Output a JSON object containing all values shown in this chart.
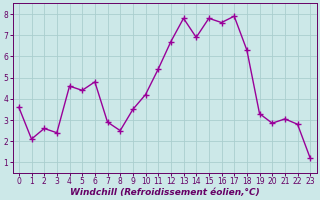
{
  "x": [
    0,
    1,
    2,
    3,
    4,
    5,
    6,
    7,
    8,
    9,
    10,
    11,
    12,
    13,
    14,
    15,
    16,
    17,
    18,
    19,
    20,
    21,
    22,
    23
  ],
  "y": [
    3.6,
    2.1,
    2.6,
    2.4,
    4.6,
    4.4,
    4.8,
    2.9,
    2.5,
    3.5,
    4.2,
    5.4,
    6.7,
    7.8,
    6.9,
    7.8,
    7.6,
    7.9,
    6.3,
    3.3,
    2.85,
    3.05,
    2.8,
    1.2
  ],
  "line_color": "#990099",
  "marker": "+",
  "marker_size": 4,
  "marker_lw": 1.0,
  "bg_color": "#cce8e8",
  "grid_color": "#aacece",
  "xlabel": "Windchill (Refroidissement éolien,°C)",
  "xlim": [
    -0.5,
    23.5
  ],
  "ylim": [
    0.5,
    8.5
  ],
  "yticks": [
    1,
    2,
    3,
    4,
    5,
    6,
    7,
    8
  ],
  "xticks": [
    0,
    1,
    2,
    3,
    4,
    5,
    6,
    7,
    8,
    9,
    10,
    11,
    12,
    13,
    14,
    15,
    16,
    17,
    18,
    19,
    20,
    21,
    22,
    23
  ],
  "line_color_dark": "#880088",
  "tick_label_color": "#660066",
  "xlabel_color": "#660066",
  "tick_fontsize": 5.5,
  "xlabel_fontsize": 6.5,
  "linewidth": 1.0
}
